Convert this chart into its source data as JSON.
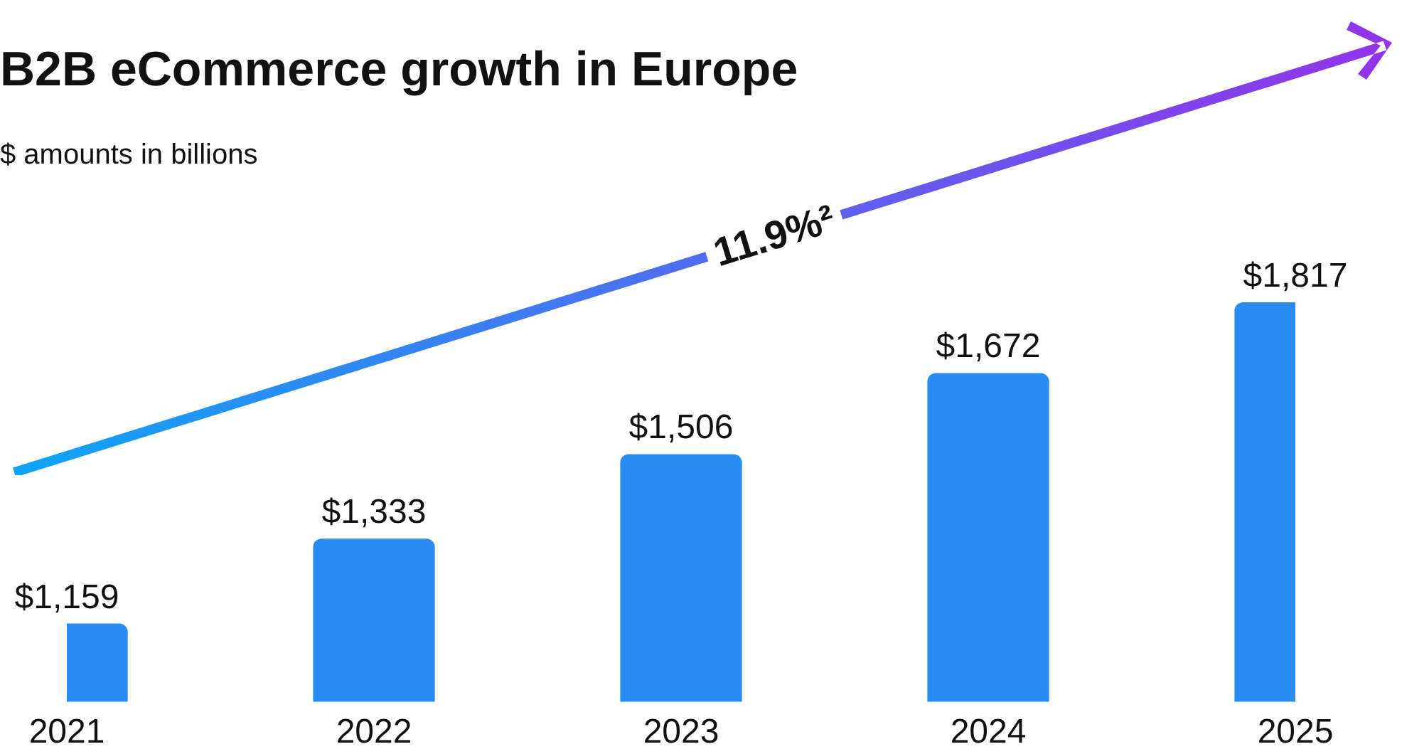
{
  "chart_data": {
    "type": "bar",
    "title": "B2B eCommerce growth in Europe",
    "subtitle": "$ amounts in billions",
    "categories": [
      "2021",
      "2022",
      "2023",
      "2024",
      "2025"
    ],
    "series": [
      {
        "color": "#2a8cf2",
        "values": [
          1159,
          1333,
          1506,
          1672,
          1817
        ],
        "value_labels": [
          "$1,159",
          "$1,333",
          "$1,506",
          "$1,672",
          "$1,817"
        ]
      }
    ],
    "tick_labels": "x",
    "grid": false,
    "legend": false,
    "annotations": [
      "11.9%²"
    ]
  }
}
